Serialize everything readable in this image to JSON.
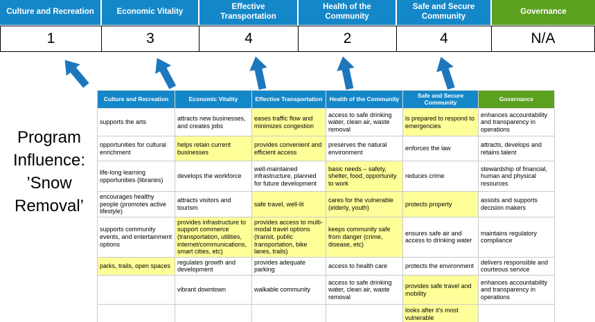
{
  "program_label": "Program Influence: ’Snow Removal’",
  "banner": {
    "cells": [
      {
        "label": "Culture and Recreation",
        "score": "1",
        "bg": "#1487c8"
      },
      {
        "label": "Economic Vitality",
        "score": "3",
        "bg": "#1487c8"
      },
      {
        "label": "Effective Transportation",
        "score": "4",
        "bg": "#1487c8"
      },
      {
        "label": "Health of the Community",
        "score": "2",
        "bg": "#1487c8"
      },
      {
        "label": "Safe and Secure Community",
        "score": "4",
        "bg": "#1487c8"
      },
      {
        "label": "Governance",
        "score": "N/A",
        "bg": "#5ca020"
      }
    ]
  },
  "arrows": {
    "icon": "up-arrow-icon",
    "color": "#1d77bd",
    "count": 5
  },
  "table": {
    "highlight_color": "#ffff99",
    "headers": [
      {
        "label": "Culture and Recreation",
        "bg": "#1487c8"
      },
      {
        "label": "Economic Vitality",
        "bg": "#1487c8"
      },
      {
        "label": "Effective Transportation",
        "bg": "#1487c8"
      },
      {
        "label": "Health of the Community",
        "bg": "#1487c8"
      },
      {
        "label": "Safe and Secure Community",
        "bg": "#1487c8"
      },
      {
        "label": "Governance",
        "bg": "#5ca020"
      }
    ],
    "rows": [
      [
        {
          "text": "supports the arts",
          "hl": false
        },
        {
          "text": "attracts new businesses, and creates jobs",
          "hl": false
        },
        {
          "text": "eases traffic flow and minimizes congestion",
          "hl": true
        },
        {
          "text": "access to safe drinking water, clean air, waste removal",
          "hl": false
        },
        {
          "text": "is prepared to respond to emergencies",
          "hl": true
        },
        {
          "text": "enhances accountability and transparency in operations",
          "hl": false
        }
      ],
      [
        {
          "text": "opportunities for cultural enrichment",
          "hl": false
        },
        {
          "text": "helps retain current businesses",
          "hl": true
        },
        {
          "text": "provides convenient and efficient access",
          "hl": true
        },
        {
          "text": "preserves the natural environment",
          "hl": false
        },
        {
          "text": "enforces the law",
          "hl": false
        },
        {
          "text": "attracts, develops and retains talent",
          "hl": false
        }
      ],
      [
        {
          "text": "life-long learning opportunities (libraries)",
          "hl": false
        },
        {
          "text": "develops the workforce",
          "hl": false
        },
        {
          "text": "well-maintained infrastructure, planned for future development",
          "hl": false
        },
        {
          "text": "basic needs – safety, shelter, food, opportunity to work",
          "hl": true
        },
        {
          "text": "reduces crime",
          "hl": false
        },
        {
          "text": "stewardship of financial, human and physical resources",
          "hl": false
        }
      ],
      [
        {
          "text": "encourages healthy people (promotes active lifestyle)",
          "hl": false
        },
        {
          "text": "attracts visitors and tourism",
          "hl": false
        },
        {
          "text": "safe travel, well-lit",
          "hl": true
        },
        {
          "text": "cares for the vulnerable (elderly, youth)",
          "hl": true
        },
        {
          "text": "protects property",
          "hl": true
        },
        {
          "text": "assists and supports decision makers",
          "hl": false
        }
      ],
      [
        {
          "text": "supports community events, and entertainment options",
          "hl": false
        },
        {
          "text": "provides infrastructure to support commerce (transportation, utilities, internet/communications, smart cities, etc)",
          "hl": true
        },
        {
          "text": "provides access to multi-modal travel options (transit, public transportation, bike lanes, trails)",
          "hl": true
        },
        {
          "text": "keeps community safe from danger (crime, disease, etc)",
          "hl": true
        },
        {
          "text": "ensures safe air and access to drinking water",
          "hl": false
        },
        {
          "text": "maintains regulatory compliance",
          "hl": false
        }
      ],
      [
        {
          "text": "parks, trails, open spaces",
          "hl": true
        },
        {
          "text": "regulates growth and development",
          "hl": false
        },
        {
          "text": "provides adequate parking",
          "hl": false
        },
        {
          "text": "access to health care",
          "hl": false
        },
        {
          "text": "protects the environment",
          "hl": false
        },
        {
          "text": "delivers responsible and courteous service",
          "hl": false
        }
      ],
      [
        {
          "text": "",
          "hl": false
        },
        {
          "text": "vibrant downtown",
          "hl": false
        },
        {
          "text": "walkable community",
          "hl": false
        },
        {
          "text": "access to safe drinking water, clean air, waste removal",
          "hl": false
        },
        {
          "text": "provides safe travel and mobility",
          "hl": true
        },
        {
          "text": "enhances accountability and transparency in operations",
          "hl": false
        }
      ],
      [
        {
          "text": "",
          "hl": false
        },
        {
          "text": "",
          "hl": false
        },
        {
          "text": "",
          "hl": false
        },
        {
          "text": "",
          "hl": false
        },
        {
          "text": "looks after it's most vulnerable",
          "hl": true
        },
        {
          "text": "",
          "hl": false
        }
      ]
    ]
  }
}
